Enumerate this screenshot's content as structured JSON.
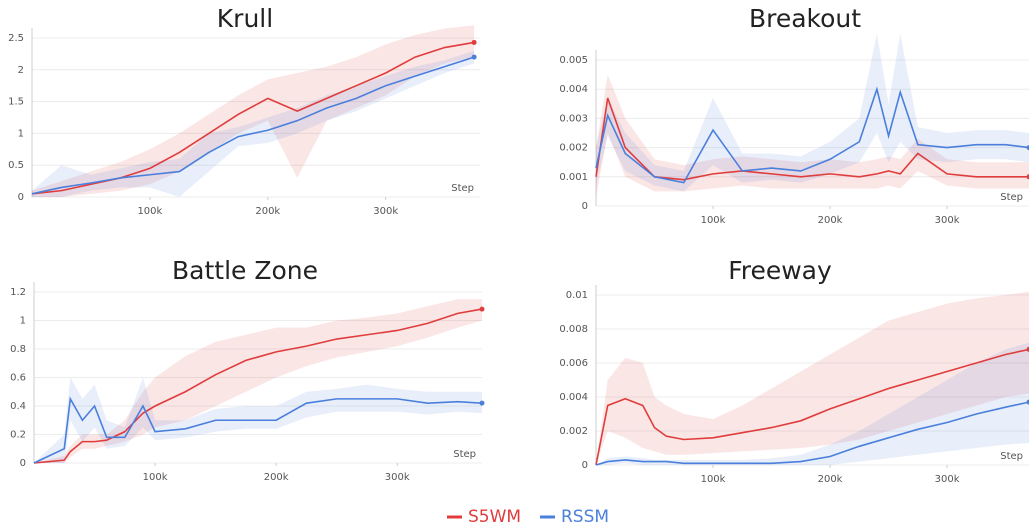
{
  "chart_data": [
    {
      "type": "line",
      "title": "Krull",
      "xlabel": "Step",
      "x": [
        0,
        25000,
        50000,
        75000,
        100000,
        125000,
        150000,
        175000,
        200000,
        225000,
        250000,
        275000,
        300000,
        325000,
        350000,
        375000
      ],
      "series": [
        {
          "name": "S5WM",
          "color": "#e03c3c",
          "values": [
            0.05,
            0.1,
            0.2,
            0.3,
            0.45,
            0.7,
            1.0,
            1.3,
            1.55,
            1.35,
            1.55,
            1.75,
            1.95,
            2.2,
            2.35,
            2.43
          ],
          "upper": [
            0.1,
            0.25,
            0.4,
            0.55,
            0.75,
            1.0,
            1.3,
            1.6,
            1.85,
            1.95,
            2.05,
            2.2,
            2.4,
            2.55,
            2.65,
            2.7
          ],
          "lower": [
            0,
            0,
            0.05,
            0.1,
            0.2,
            0.4,
            0.7,
            1.0,
            1.2,
            0.3,
            1.2,
            1.4,
            1.6,
            1.9,
            2.1,
            2.2
          ]
        },
        {
          "name": "RSSM",
          "color": "#4a7fdc",
          "values": [
            0.05,
            0.15,
            0.22,
            0.3,
            0.35,
            0.4,
            0.7,
            0.95,
            1.05,
            1.2,
            1.4,
            1.55,
            1.75,
            1.9,
            2.05,
            2.2
          ],
          "upper": [
            0.1,
            0.5,
            0.35,
            0.45,
            0.55,
            0.6,
            1.0,
            1.1,
            1.25,
            1.4,
            1.6,
            1.75,
            1.9,
            2.05,
            2.15,
            2.3
          ],
          "lower": [
            0,
            0,
            0.1,
            0.15,
            0.15,
            0,
            0.4,
            0.8,
            0.85,
            1.0,
            1.2,
            1.35,
            1.55,
            1.75,
            1.95,
            2.1
          ]
        }
      ],
      "xlim": [
        0,
        380000
      ],
      "xticks": [
        {
          "value": 100000,
          "label": "100k"
        },
        {
          "value": 200000,
          "label": "200k"
        },
        {
          "value": 300000,
          "label": "300k"
        }
      ],
      "ylim": [
        0,
        2.5
      ],
      "yticks": [
        0,
        0.5,
        1,
        1.5,
        2,
        2.5
      ],
      "grid": true
    },
    {
      "type": "line",
      "title": "Breakout",
      "xlabel": "Step",
      "x": [
        0,
        10000,
        25000,
        50000,
        75000,
        100000,
        125000,
        150000,
        175000,
        200000,
        225000,
        240000,
        250000,
        260000,
        275000,
        300000,
        325000,
        350000,
        370000
      ],
      "series": [
        {
          "name": "S5WM",
          "color": "#e03c3c",
          "values": [
            0.001,
            0.0037,
            0.002,
            0.001,
            0.0009,
            0.0011,
            0.0012,
            0.0011,
            0.001,
            0.0011,
            0.001,
            0.0011,
            0.0012,
            0.0011,
            0.0018,
            0.0011,
            0.001,
            0.001,
            0.001
          ],
          "upper": [
            0.002,
            0.0045,
            0.003,
            0.0016,
            0.0014,
            0.0016,
            0.0017,
            0.0016,
            0.0015,
            0.0016,
            0.0015,
            0.0016,
            0.0017,
            0.0016,
            0.0023,
            0.0016,
            0.0015,
            0.0015,
            0.0015
          ],
          "lower": [
            0.0003,
            0.0025,
            0.001,
            0.0005,
            0.0005,
            0.0006,
            0.0007,
            0.0006,
            0.0006,
            0.0006,
            0.0006,
            0.0006,
            0.0007,
            0.0006,
            0.0012,
            0.0007,
            0.0006,
            0.0006,
            0.0006
          ]
        },
        {
          "name": "RSSM",
          "color": "#4a7fdc",
          "values": [
            0.0013,
            0.0031,
            0.0018,
            0.001,
            0.0008,
            0.0026,
            0.0012,
            0.0013,
            0.0012,
            0.0016,
            0.0022,
            0.004,
            0.0024,
            0.0039,
            0.0021,
            0.002,
            0.0021,
            0.0021,
            0.002
          ],
          "upper": [
            0.002,
            0.0037,
            0.0025,
            0.0014,
            0.0012,
            0.0037,
            0.0018,
            0.0018,
            0.0017,
            0.0022,
            0.003,
            0.0059,
            0.0035,
            0.0059,
            0.0027,
            0.0025,
            0.0026,
            0.0026,
            0.0025
          ],
          "lower": [
            0.0007,
            0.0024,
            0.0012,
            0.0007,
            0.0005,
            0.0014,
            0.0008,
            0.0009,
            0.0008,
            0.0011,
            0.0015,
            0.0025,
            0.0015,
            0.0022,
            0.0016,
            0.0015,
            0.0016,
            0.0016,
            0.0015
          ]
        }
      ],
      "xlim": [
        0,
        370000
      ],
      "xticks": [
        {
          "value": 100000,
          "label": "100k"
        },
        {
          "value": 200000,
          "label": "200k"
        },
        {
          "value": 300000,
          "label": "300k"
        }
      ],
      "ylim": [
        0,
        0.005
      ],
      "yticks": [
        0,
        0.001,
        0.002,
        0.003,
        0.004,
        0.005
      ],
      "grid": true
    },
    {
      "type": "line",
      "title": "Battle Zone",
      "xlabel": "Step",
      "x": [
        0,
        25000,
        30000,
        40000,
        50000,
        60000,
        75000,
        90000,
        100000,
        125000,
        150000,
        175000,
        200000,
        225000,
        250000,
        275000,
        300000,
        325000,
        350000,
        370000
      ],
      "series": [
        {
          "name": "S5WM",
          "color": "#e03c3c",
          "values": [
            0,
            0.02,
            0.08,
            0.15,
            0.15,
            0.16,
            0.22,
            0.35,
            0.4,
            0.5,
            0.62,
            0.72,
            0.78,
            0.82,
            0.87,
            0.9,
            0.93,
            0.98,
            1.05,
            1.08
          ],
          "upper": [
            0,
            0.05,
            0.12,
            0.2,
            0.2,
            0.2,
            0.3,
            0.5,
            0.6,
            0.75,
            0.85,
            0.9,
            0.95,
            0.95,
            1.0,
            1.02,
            1.05,
            1.1,
            1.15,
            1.15
          ],
          "lower": [
            0,
            0,
            0.04,
            0.1,
            0.1,
            0.12,
            0.15,
            0.2,
            0.25,
            0.3,
            0.4,
            0.5,
            0.6,
            0.68,
            0.74,
            0.78,
            0.82,
            0.88,
            0.95,
            1.0
          ]
        },
        {
          "name": "RSSM",
          "color": "#4a7fdc",
          "values": [
            0,
            0.1,
            0.45,
            0.3,
            0.4,
            0.18,
            0.18,
            0.4,
            0.22,
            0.24,
            0.3,
            0.3,
            0.3,
            0.42,
            0.45,
            0.45,
            0.45,
            0.42,
            0.43,
            0.42
          ],
          "upper": [
            0,
            0.2,
            0.6,
            0.45,
            0.55,
            0.3,
            0.25,
            0.6,
            0.3,
            0.3,
            0.38,
            0.4,
            0.4,
            0.5,
            0.52,
            0.55,
            0.52,
            0.5,
            0.5,
            0.5
          ],
          "lower": [
            0,
            0,
            0.3,
            0.15,
            0.25,
            0.1,
            0.12,
            0.25,
            0.16,
            0.18,
            0.22,
            0.24,
            0.24,
            0.32,
            0.36,
            0.36,
            0.36,
            0.34,
            0.36,
            0.35
          ]
        }
      ],
      "xlim": [
        0,
        370000
      ],
      "xticks": [
        {
          "value": 100000,
          "label": "100k"
        },
        {
          "value": 200000,
          "label": "200k"
        },
        {
          "value": 300000,
          "label": "300k"
        }
      ],
      "ylim": [
        0,
        1.2
      ],
      "yticks": [
        0,
        0.2,
        0.4,
        0.6,
        0.8,
        1,
        1.2
      ],
      "grid": true
    },
    {
      "type": "line",
      "title": "Freeway",
      "xlabel": "Step",
      "x": [
        0,
        10000,
        25000,
        40000,
        50000,
        60000,
        75000,
        100000,
        125000,
        150000,
        175000,
        200000,
        225000,
        250000,
        275000,
        300000,
        325000,
        350000,
        370000
      ],
      "series": [
        {
          "name": "S5WM",
          "color": "#e03c3c",
          "values": [
            0,
            0.0035,
            0.0039,
            0.0035,
            0.0022,
            0.0017,
            0.0015,
            0.0016,
            0.0019,
            0.0022,
            0.0026,
            0.0033,
            0.0039,
            0.0045,
            0.005,
            0.0055,
            0.006,
            0.0065,
            0.0068
          ],
          "upper": [
            0,
            0.005,
            0.0063,
            0.006,
            0.004,
            0.0035,
            0.003,
            0.0027,
            0.0035,
            0.0045,
            0.0055,
            0.0065,
            0.0075,
            0.0085,
            0.009,
            0.0095,
            0.0098,
            0.01,
            0.0102
          ],
          "lower": [
            0,
            0.002,
            0.0016,
            0.001,
            0.0008,
            0.0006,
            0.0006,
            0.0007,
            0.0008,
            0.0009,
            0.001,
            0.0012,
            0.0015,
            0.002,
            0.0025,
            0.003,
            0.0035,
            0.004,
            0.0042
          ]
        },
        {
          "name": "RSSM",
          "color": "#4a7fdc",
          "values": [
            0,
            0.0002,
            0.0003,
            0.0002,
            0.0002,
            0.0002,
            0.0001,
            0.0001,
            0.0001,
            0.0001,
            0.0002,
            0.0005,
            0.0011,
            0.0016,
            0.0021,
            0.0025,
            0.003,
            0.0034,
            0.0037
          ],
          "upper": [
            0,
            0.0004,
            0.0005,
            0.0004,
            0.0003,
            0.0003,
            0.0003,
            0.0003,
            0.0003,
            0.0004,
            0.0006,
            0.0012,
            0.002,
            0.003,
            0.004,
            0.005,
            0.006,
            0.0068,
            0.0072
          ],
          "lower": [
            0,
            0,
            0.0001,
            0,
            0,
            0,
            0,
            0,
            0,
            0,
            0,
            0,
            0.0002,
            0.0004,
            0.0006,
            0.0008,
            0.001,
            0.0012,
            0.0013
          ]
        }
      ],
      "xlim": [
        0,
        370000
      ],
      "xticks": [
        {
          "value": 100000,
          "label": "100k"
        },
        {
          "value": 200000,
          "label": "200k"
        },
        {
          "value": 300000,
          "label": "300k"
        }
      ],
      "ylim": [
        0,
        0.01
      ],
      "yticks": [
        0,
        0.002,
        0.004,
        0.006,
        0.008,
        0.01
      ],
      "grid": true
    }
  ]
}
